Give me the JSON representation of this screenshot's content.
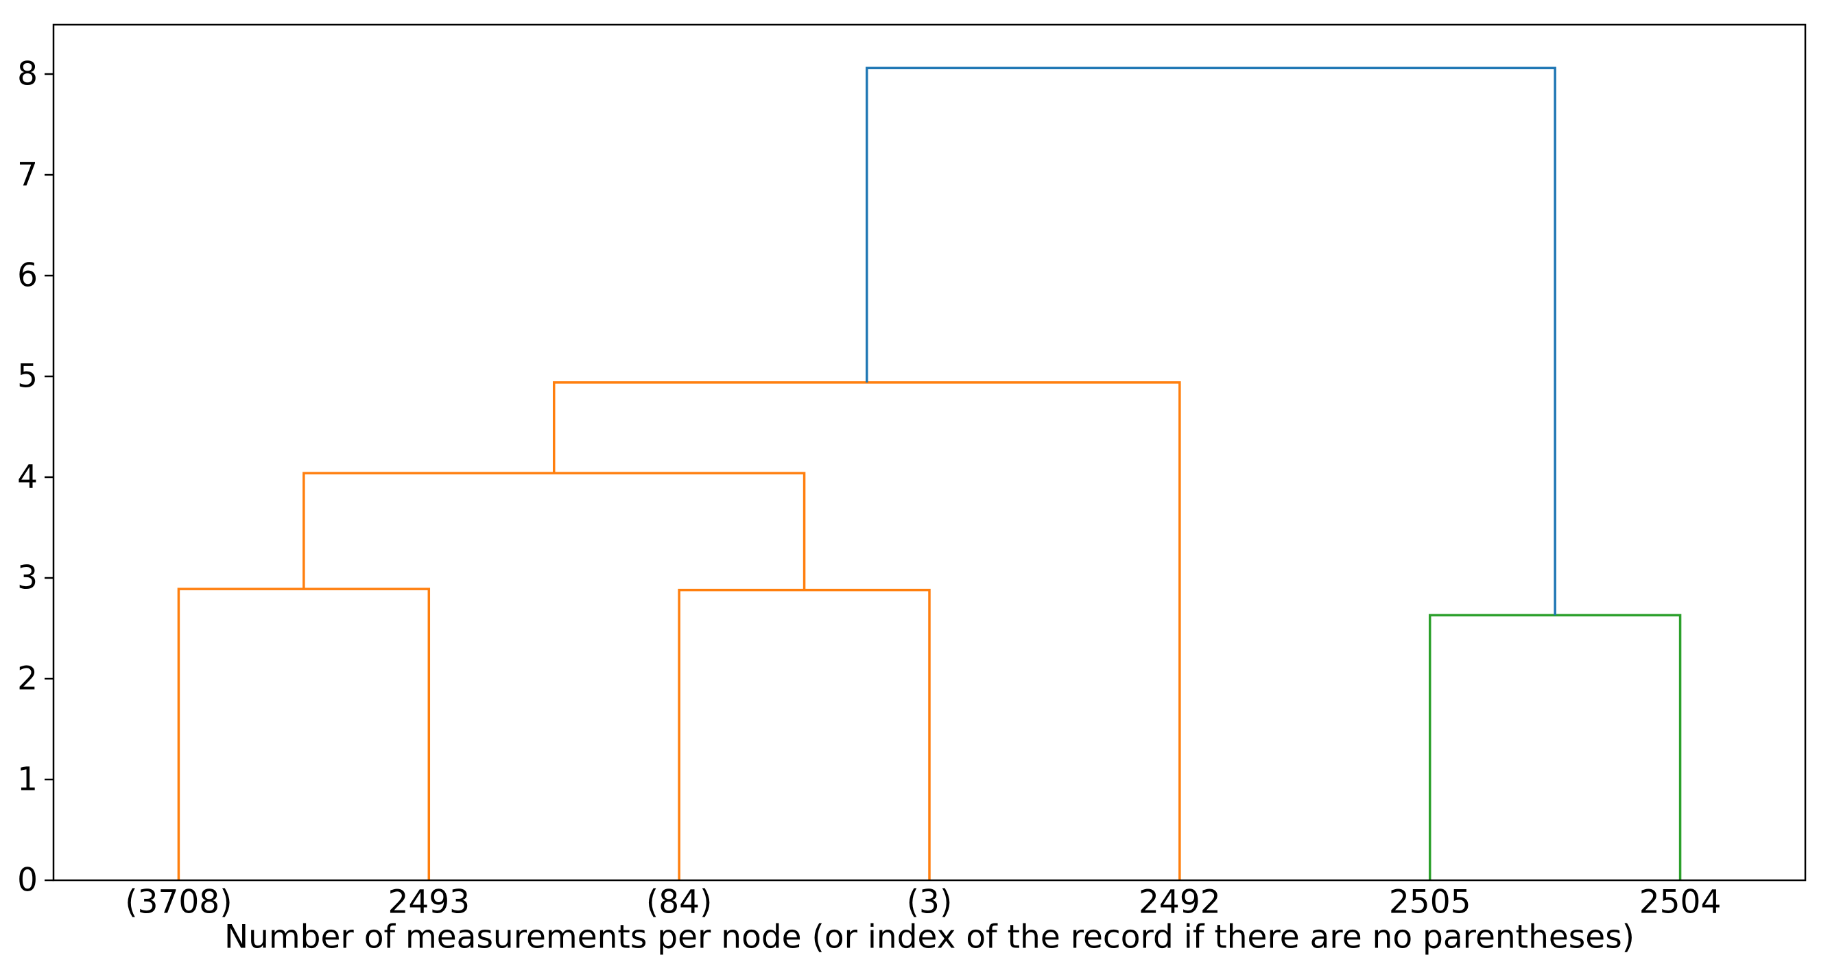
{
  "figure": {
    "description": "Hierarchical clustering dendrogram",
    "background": "#ffffff"
  },
  "chart_data": {
    "type": "dendrogram",
    "title": "",
    "xlabel": "Number of measurements per node (or index of the record if there are no parentheses)",
    "ylabel": "",
    "xlim": [
      0,
      70
    ],
    "ylim": [
      0,
      8.49
    ],
    "grid": false,
    "y_ticks": [
      0,
      1,
      2,
      3,
      4,
      5,
      6,
      7,
      8
    ],
    "leaves": [
      {
        "label": "(3708)",
        "x": 5
      },
      {
        "label": "2493",
        "x": 15
      },
      {
        "label": "(84)",
        "x": 25
      },
      {
        "label": "(3)",
        "x": 35
      },
      {
        "label": "2492",
        "x": 45
      },
      {
        "label": "2505",
        "x": 55
      },
      {
        "label": "2504",
        "x": 65
      }
    ],
    "links": [
      {
        "name": "merge-3708-2493",
        "xs": [
          5,
          5,
          15,
          15
        ],
        "ys": [
          0,
          2.89,
          2.89,
          0
        ],
        "color_key": "orange"
      },
      {
        "name": "merge-84-3",
        "xs": [
          25,
          25,
          35,
          35
        ],
        "ys": [
          0,
          2.88,
          2.88,
          0
        ],
        "color_key": "orange"
      },
      {
        "name": "merge-left-mid",
        "xs": [
          10,
          10,
          30,
          30
        ],
        "ys": [
          2.89,
          4.04,
          4.04,
          2.88
        ],
        "color_key": "orange"
      },
      {
        "name": "merge-with-2492",
        "xs": [
          20,
          20,
          45,
          45
        ],
        "ys": [
          4.04,
          4.94,
          4.94,
          0
        ],
        "color_key": "orange"
      },
      {
        "name": "merge-2505-2504",
        "xs": [
          55,
          55,
          65,
          65
        ],
        "ys": [
          0,
          2.63,
          2.63,
          0
        ],
        "color_key": "green"
      },
      {
        "name": "root-merge",
        "xs": [
          32.5,
          32.5,
          60,
          60
        ],
        "ys": [
          4.94,
          8.06,
          8.06,
          2.63
        ],
        "color_key": "blue"
      }
    ],
    "colors": {
      "orange": "#ff7f0e",
      "green": "#2ca02c",
      "blue": "#1f77b4",
      "axis": "#000000"
    },
    "legend": null
  }
}
